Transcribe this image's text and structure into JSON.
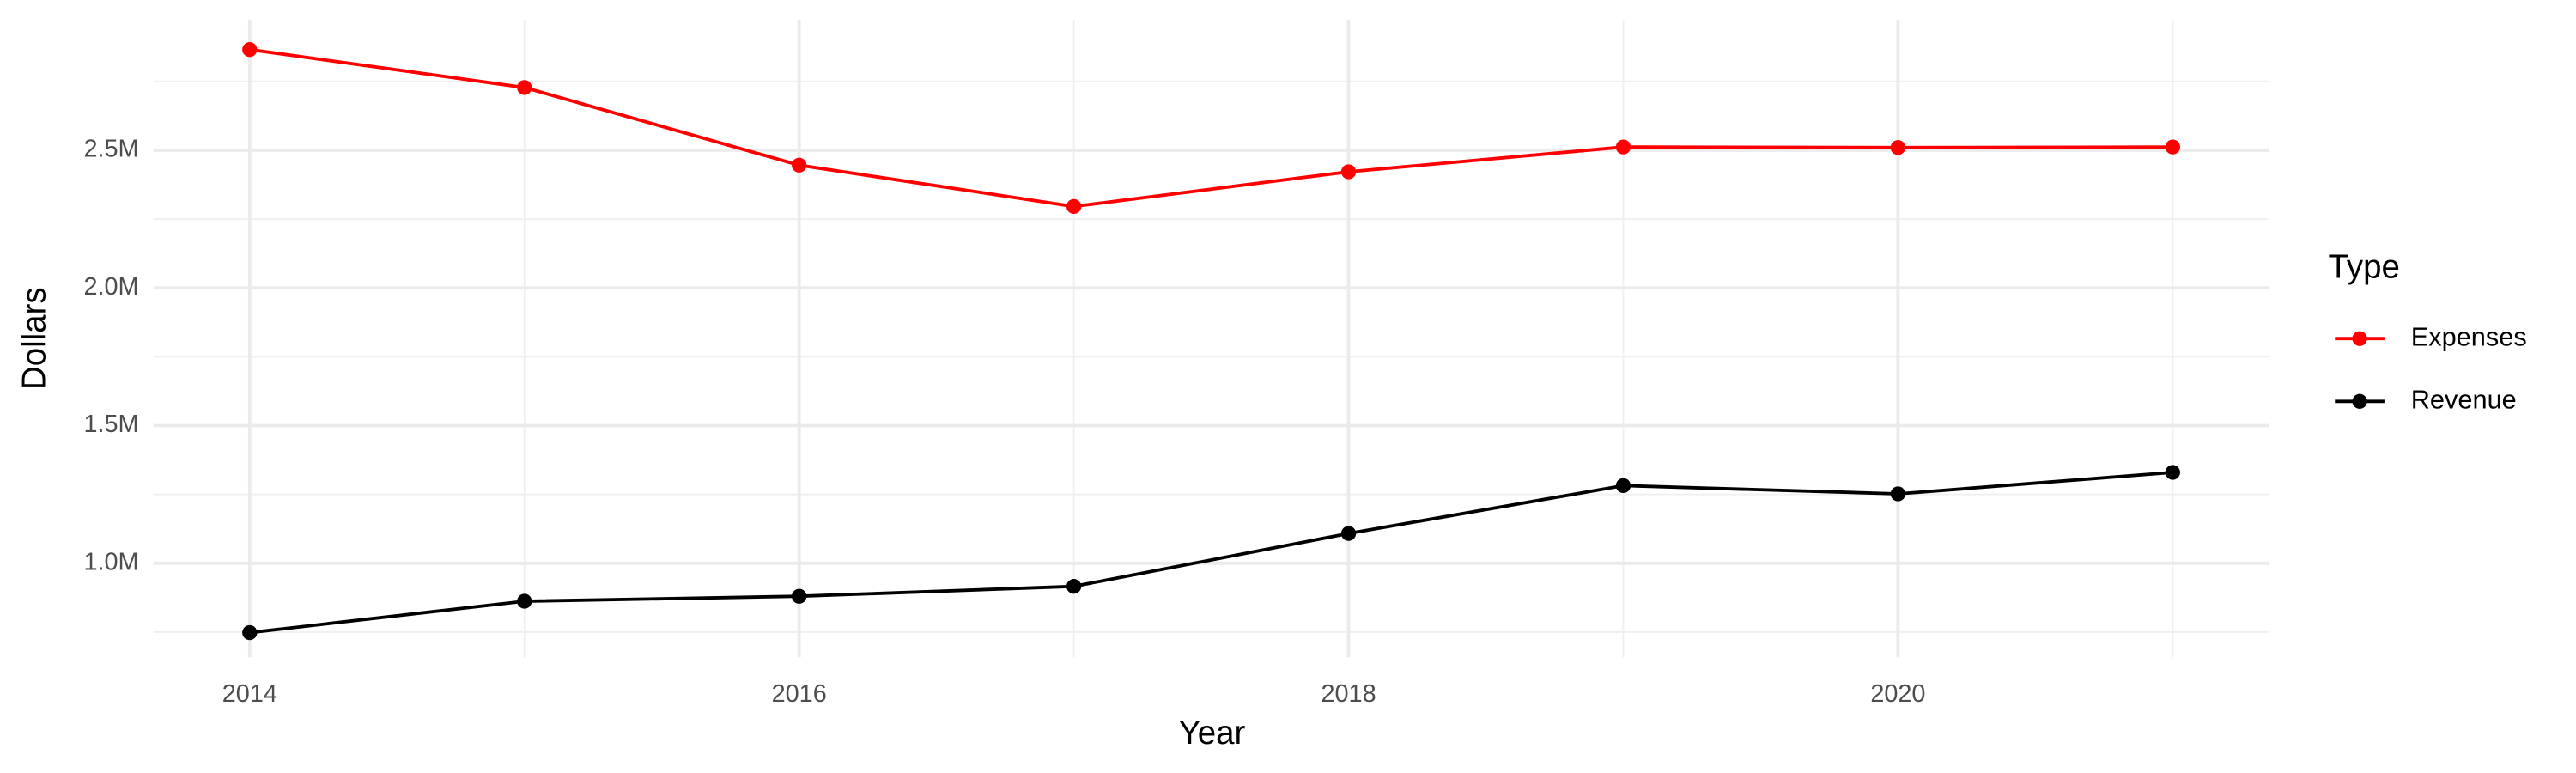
{
  "chart_data": {
    "type": "line",
    "x_label": "Year",
    "y_label": "Dollars",
    "legend_title": "Type",
    "legend_position": "right",
    "x": [
      2014,
      2015,
      2016,
      2017,
      2018,
      2019,
      2020,
      2021
    ],
    "series": [
      {
        "name": "Expenses",
        "color": "#ff0000",
        "values": [
          2866000,
          2728000,
          2446000,
          2296000,
          2422000,
          2512000,
          2510000,
          2512000
        ]
      },
      {
        "name": "Revenue",
        "color": "#000000",
        "values": [
          748000,
          862000,
          880000,
          916000,
          1108000,
          1282000,
          1252000,
          1330000
        ]
      }
    ],
    "xlim": [
      2013.65,
      2021.35
    ],
    "xticks": [
      2014,
      2016,
      2018,
      2020
    ],
    "x_minor_ticks": [
      2015,
      2017,
      2019,
      2021
    ],
    "ylim": [
      658000,
      2974000
    ],
    "yticks": [
      {
        "value": 1000000,
        "label": "1.0M"
      },
      {
        "value": 1500000,
        "label": "1.5M"
      },
      {
        "value": 2000000,
        "label": "2.0M"
      },
      {
        "value": 2500000,
        "label": "2.5M"
      }
    ],
    "y_minor_ticks": [
      750000,
      1250000,
      1750000,
      2250000,
      2750000
    ],
    "grid": true
  }
}
